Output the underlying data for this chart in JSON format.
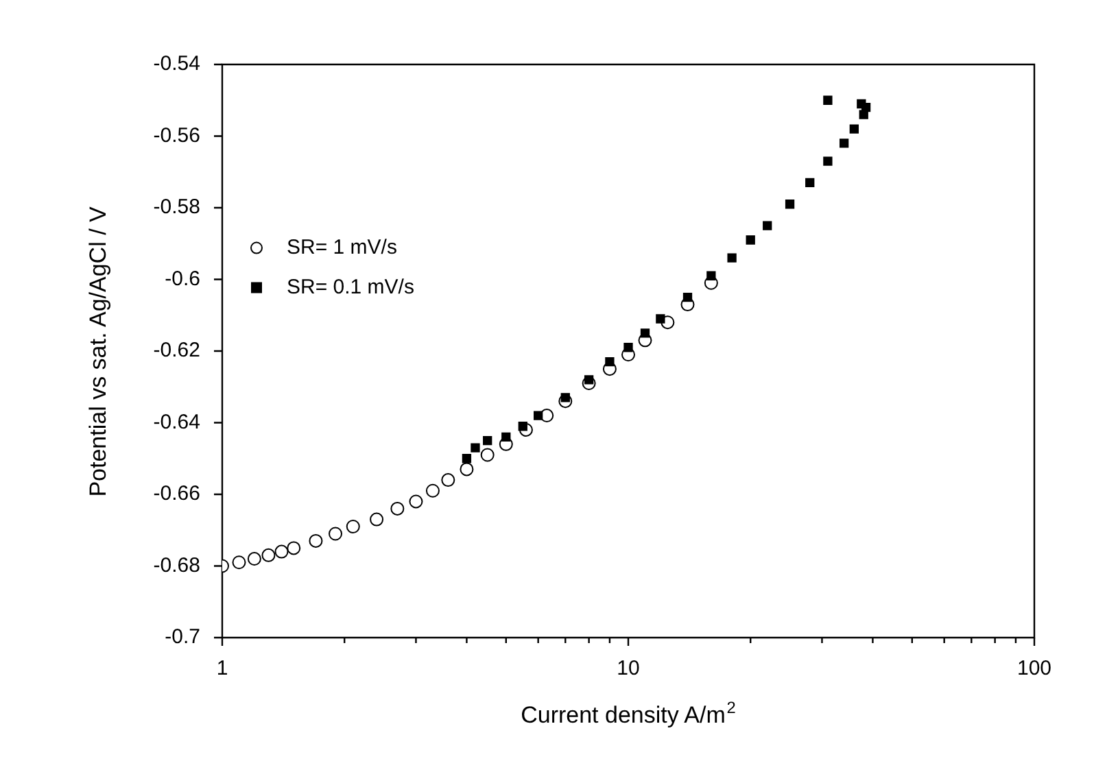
{
  "chart_data": {
    "type": "scatter",
    "xlabel": "Current density A/m$^{2}$",
    "ylabel": "Potential vs sat. Ag/AgCl / V",
    "log": "x",
    "xlim": [
      1,
      100
    ],
    "xticks": [
      1,
      {
        "value": 2,
        "label": null
      },
      {
        "value": 3,
        "label": null
      },
      {
        "value": 4,
        "label": null
      },
      {
        "value": 5,
        "label": null
      },
      {
        "value": 6,
        "label": null
      },
      {
        "value": 7,
        "label": null
      },
      {
        "value": 8,
        "label": null
      },
      {
        "value": 9,
        "label": null
      },
      10,
      {
        "value": 20,
        "label": null
      },
      {
        "value": 30,
        "label": null
      },
      {
        "value": 40,
        "label": null
      },
      {
        "value": 50,
        "label": null
      },
      {
        "value": 60,
        "label": null
      },
      {
        "value": 70,
        "label": null
      },
      {
        "value": 80,
        "label": null
      },
      {
        "value": 90,
        "label": null
      },
      100
    ],
    "ylim": [
      -0.7,
      -0.54
    ],
    "yticks": [
      -0.7,
      -0.68,
      -0.66,
      -0.64,
      -0.62,
      -0.6,
      -0.58,
      -0.56,
      -0.54
    ],
    "grid": false,
    "legend": "left",
    "series": [
      {
        "name": "SR= 1 mV/s",
        "color": "#000000",
        "marker": "circle",
        "x": [
          1,
          1.1,
          1.2,
          1.3,
          1.4,
          1.5,
          1.7,
          1.9,
          2.1,
          2.4,
          2.7,
          3,
          3.3,
          3.6,
          4,
          4.5,
          5,
          5.6,
          6.3,
          7,
          8,
          9,
          10,
          11,
          12.5,
          14,
          16
        ],
        "values": [
          -0.68,
          -0.679,
          -0.678,
          -0.677,
          -0.676,
          -0.675,
          -0.673,
          -0.671,
          -0.669,
          -0.667,
          -0.664,
          -0.662,
          -0.659,
          -0.656,
          -0.653,
          -0.649,
          -0.646,
          -0.642,
          -0.638,
          -0.634,
          -0.629,
          -0.625,
          -0.621,
          -0.617,
          -0.612,
          -0.607,
          -0.601
        ]
      },
      {
        "name": "SR= 0.1 mV/s",
        "color": "#000000",
        "marker": "square",
        "x": [
          4,
          4.2,
          4.5,
          5,
          5.5,
          6,
          7,
          8,
          9,
          10,
          11,
          12,
          14,
          16,
          18,
          20,
          22,
          25,
          28,
          31,
          34,
          36,
          38,
          38.5,
          37.5,
          31
        ],
        "values": [
          -0.65,
          -0.647,
          -0.645,
          -0.644,
          -0.641,
          -0.638,
          -0.633,
          -0.628,
          -0.623,
          -0.619,
          -0.615,
          -0.611,
          -0.605,
          -0.599,
          -0.594,
          -0.589,
          -0.585,
          -0.579,
          -0.573,
          -0.567,
          -0.562,
          -0.558,
          -0.554,
          -0.552,
          -0.551,
          -0.55
        ]
      }
    ]
  }
}
